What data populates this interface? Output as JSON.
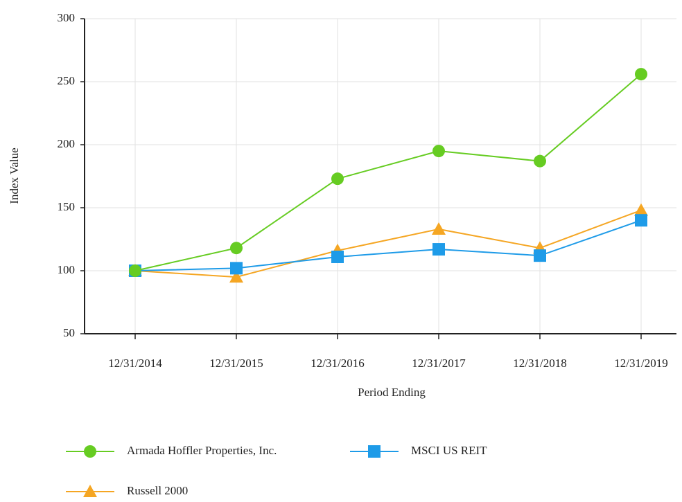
{
  "chart_data": {
    "type": "line",
    "xlabel": "Period Ending",
    "ylabel": "Index Value",
    "categories": [
      "12/31/2014",
      "12/31/2015",
      "12/31/2016",
      "12/31/2017",
      "12/31/2018",
      "12/31/2019"
    ],
    "series": [
      {
        "name": "Armada Hoffler Properties, Inc.",
        "color": "#66cc22",
        "marker": "circle",
        "values": [
          100,
          118,
          173,
          195,
          187,
          256
        ]
      },
      {
        "name": "MSCI US REIT",
        "color": "#1e9be8",
        "marker": "square",
        "values": [
          100,
          102,
          111,
          117,
          112,
          140
        ]
      },
      {
        "name": "Russell 2000",
        "color": "#f5a623",
        "marker": "triangle",
        "values": [
          100,
          95,
          116,
          133,
          118,
          148
        ]
      }
    ],
    "ylim": [
      50,
      300
    ],
    "yticks": [
      50,
      100,
      150,
      200,
      250,
      300
    ],
    "grid": true
  }
}
